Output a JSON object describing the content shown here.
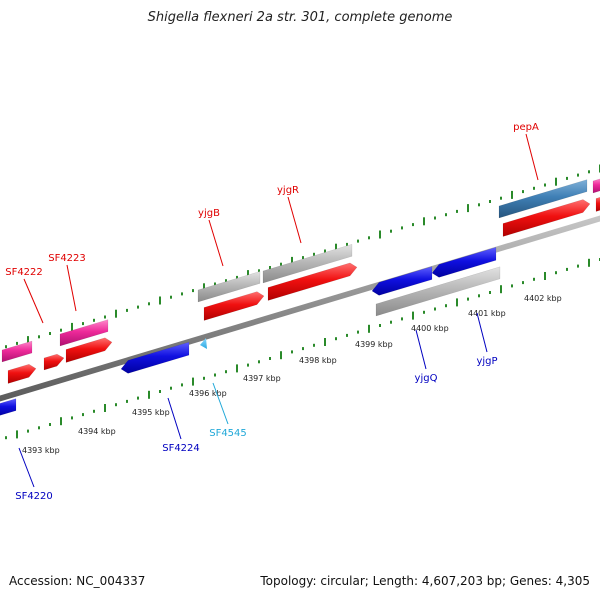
{
  "title": "Shigella flexneri 2a str. 301, complete genome",
  "footer": {
    "accession": "Accession: NC_004337",
    "summary": "Topology: circular; Length: 4,607,203 bp; Genes: 4,305"
  },
  "colors": {
    "backbone": "#8c8c8c",
    "tick": "#2a8a2a",
    "red": "#f01010",
    "pink": "#ee2a9a",
    "gray": "#b8b8b8",
    "steelblue": "#3f7fb5",
    "blue": "#1010e0",
    "cyan": "#2aa8e0",
    "label_red": "#e00000",
    "label_blue": "#0000c0",
    "label_cyan": "#20a8d8"
  },
  "ticks": [
    {
      "kbp": 4393,
      "label": "4393 kbp"
    },
    {
      "kbp": 4394,
      "label": "4394 kbp"
    },
    {
      "kbp": 4395,
      "label": "4395 kbp"
    },
    {
      "kbp": 4396,
      "label": "4396 kbp"
    },
    {
      "kbp": 4397,
      "label": "4397 kbp"
    },
    {
      "kbp": 4398,
      "label": "4398 kbp"
    },
    {
      "kbp": 4399,
      "label": "4399 kbp"
    },
    {
      "kbp": 4400,
      "label": "4400 kbp"
    },
    {
      "kbp": 4401,
      "label": "4401 kbp"
    },
    {
      "kbp": 4402,
      "label": "4402 kbp"
    }
  ],
  "gene_labels": [
    {
      "name": "SF4222",
      "color": "label_red"
    },
    {
      "name": "SF4223",
      "color": "label_red"
    },
    {
      "name": "yjgB",
      "color": "label_red"
    },
    {
      "name": "yjgR",
      "color": "label_red"
    },
    {
      "name": "pepA",
      "color": "label_red"
    },
    {
      "name": "SF4220",
      "color": "label_blue"
    },
    {
      "name": "SF4224",
      "color": "label_blue"
    },
    {
      "name": "SF4545",
      "color": "label_cyan"
    },
    {
      "name": "yjgQ",
      "color": "label_blue"
    },
    {
      "name": "yjgP",
      "color": "label_blue"
    }
  ]
}
